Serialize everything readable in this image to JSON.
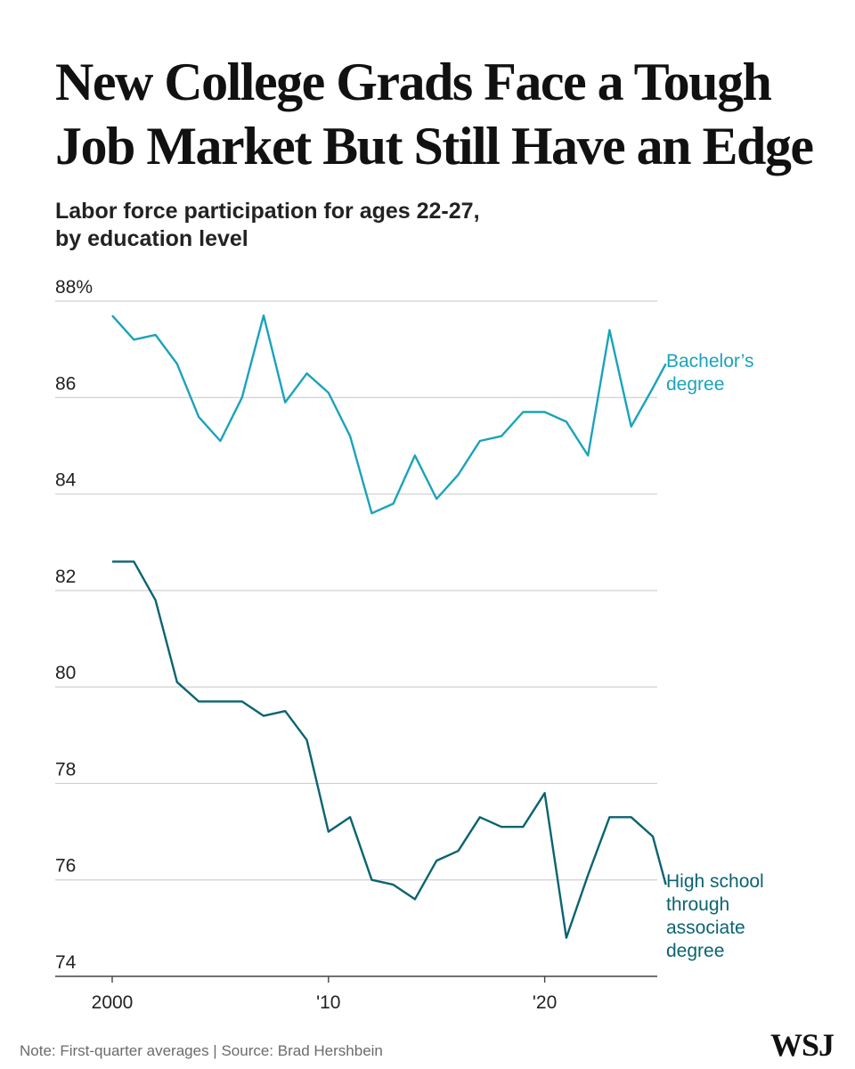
{
  "title": "New College Grads Face a Tough Job Market But Still Have an Edge",
  "subtitle_line1": "Labor force participation for ages 22-27,",
  "subtitle_line2": "by education level",
  "note": "Note: First-quarter averages | Source: Brad Hershbein",
  "logo": "WSJ",
  "colors": {
    "bachelors": "#1aa3bb",
    "highschool": "#0b6470",
    "grid": "#d0d0d0",
    "axis": "#444444",
    "text": "#222222"
  },
  "chart_data": {
    "type": "line",
    "title": "New College Grads Face a Tough Job Market But Still Have an Edge",
    "subtitle": "Labor force participation for ages 22-27, by education level",
    "xlabel": "",
    "ylabel": "",
    "xlim": [
      2000,
      2025
    ],
    "ylim": [
      74,
      88
    ],
    "grid": true,
    "y_ticks": [
      {
        "value": 88,
        "label": "88%"
      },
      {
        "value": 86,
        "label": "86"
      },
      {
        "value": 84,
        "label": "84"
      },
      {
        "value": 82,
        "label": "82"
      },
      {
        "value": 80,
        "label": "80"
      },
      {
        "value": 78,
        "label": "78"
      },
      {
        "value": 76,
        "label": "76"
      },
      {
        "value": 74,
        "label": "74"
      }
    ],
    "x_ticks": [
      {
        "value": 2000,
        "label": "2000"
      },
      {
        "value": 2010,
        "label": "'10"
      },
      {
        "value": 2020,
        "label": "'20"
      }
    ],
    "x": [
      2000,
      2001,
      2002,
      2003,
      2004,
      2005,
      2006,
      2007,
      2008,
      2009,
      2010,
      2011,
      2012,
      2013,
      2014,
      2015,
      2016,
      2017,
      2018,
      2019,
      2020,
      2021,
      2022,
      2023,
      2024,
      2025
    ],
    "series": [
      {
        "name": "Bachelor's degree",
        "label_lines": [
          "Bachelor’s",
          "degree"
        ],
        "color": "#1aa3bb",
        "values": [
          87.7,
          87.2,
          87.3,
          86.7,
          85.6,
          85.1,
          86.0,
          87.7,
          85.9,
          86.5,
          86.1,
          85.2,
          83.6,
          83.8,
          84.8,
          83.9,
          84.4,
          85.1,
          85.2,
          85.7,
          85.7,
          85.5,
          84.8,
          87.4,
          85.4,
          86.2
        ]
      },
      {
        "name": "High school through associate degree",
        "label_lines": [
          "High school",
          "through",
          "associate",
          "degree"
        ],
        "color": "#0b6470",
        "values": [
          82.6,
          82.6,
          81.8,
          80.1,
          79.7,
          79.7,
          79.7,
          79.4,
          79.5,
          78.9,
          77.0,
          77.3,
          76.0,
          75.9,
          75.6,
          76.4,
          76.6,
          77.3,
          77.1,
          77.1,
          77.8,
          74.8,
          76.1,
          77.3,
          77.3,
          76.9
        ]
      }
    ],
    "series_end_values": [
      86.7,
      75.9
    ],
    "series_end_x": 2025.6
  }
}
